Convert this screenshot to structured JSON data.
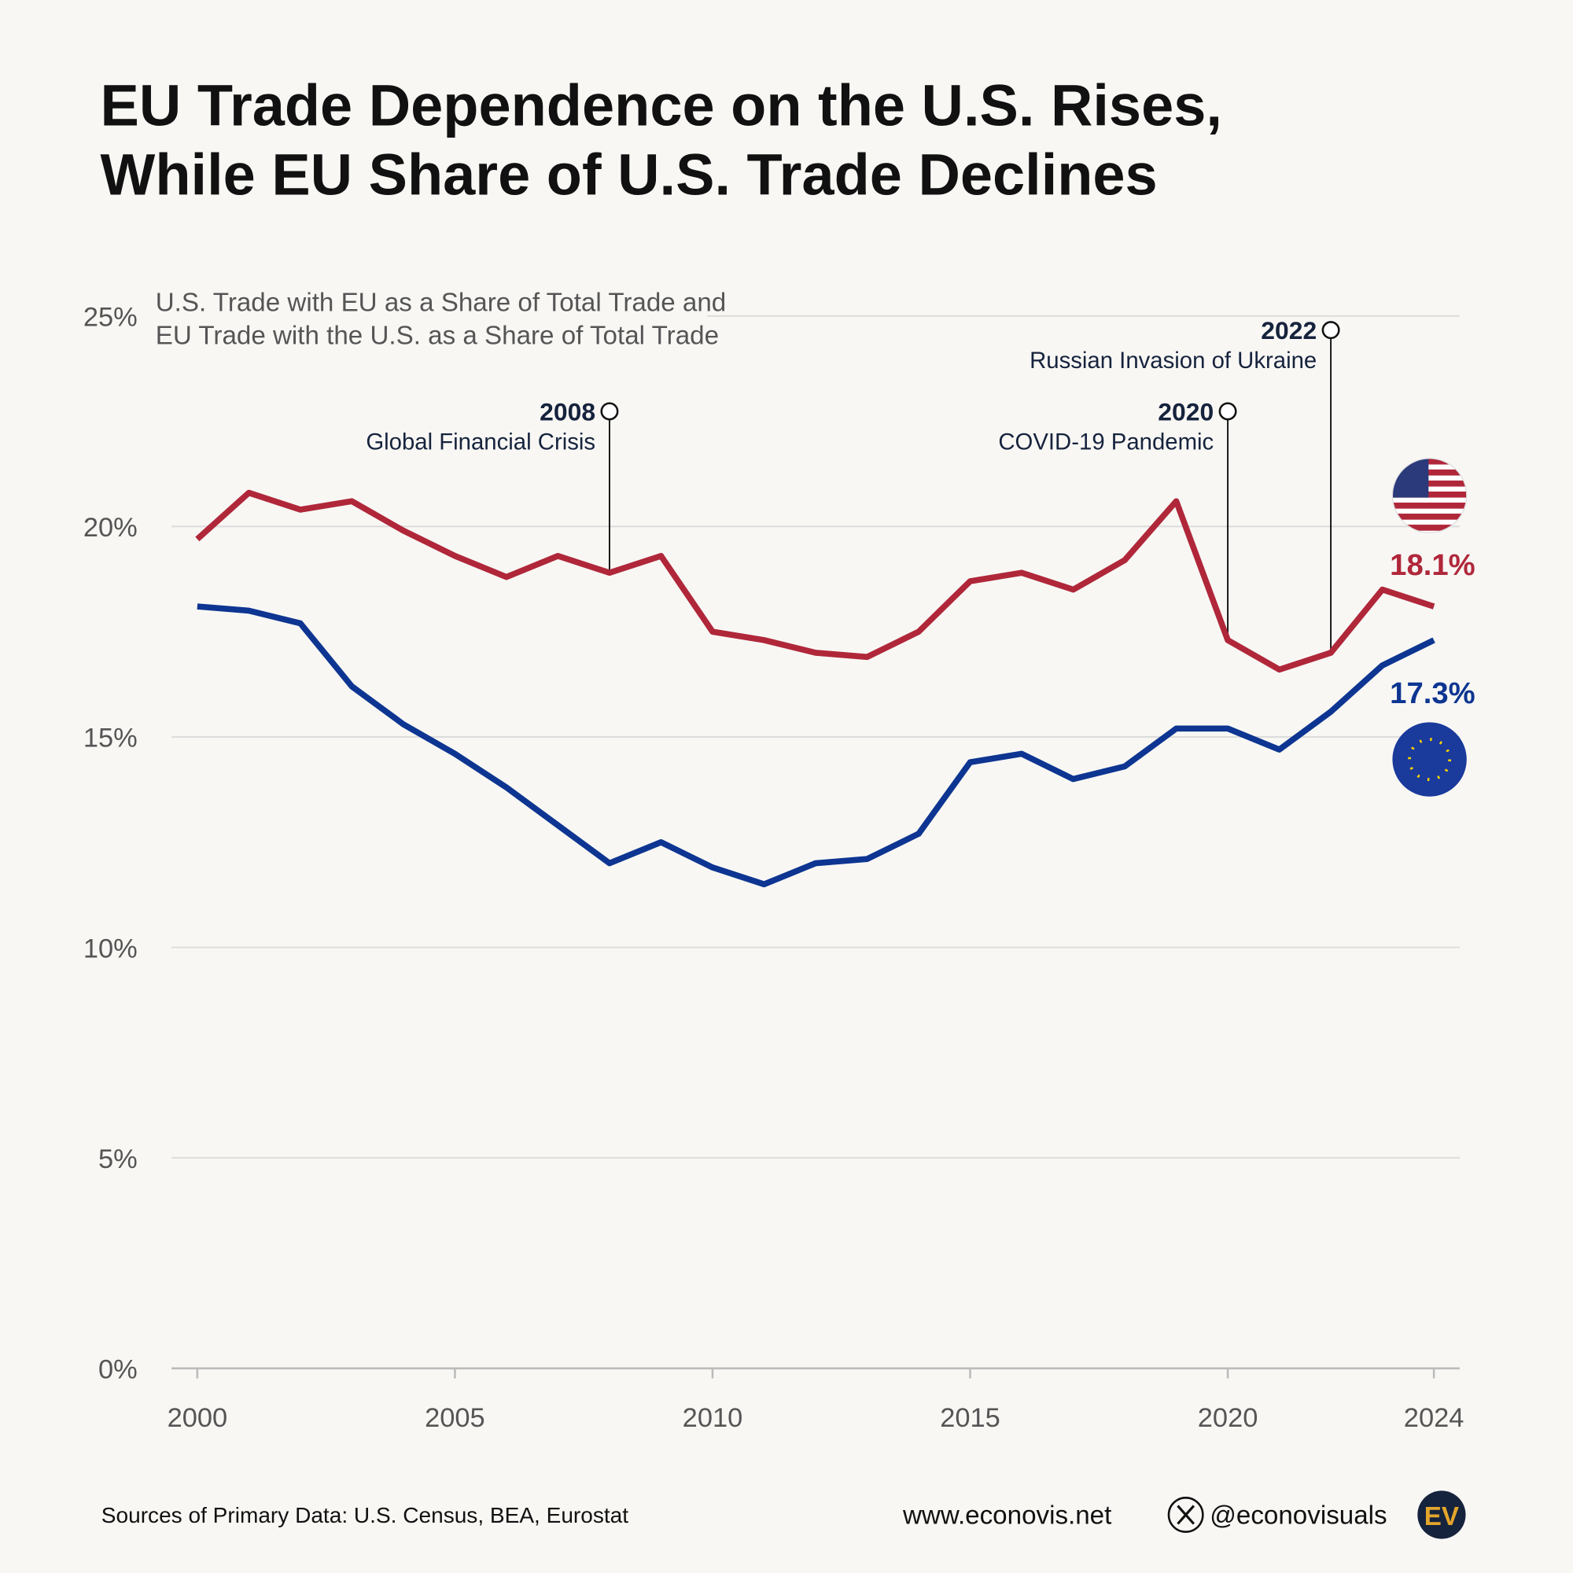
{
  "chart_data": {
    "type": "line",
    "title": [
      "EU Trade Dependence on the U.S. Rises,",
      "While EU Share of U.S. Trade Declines"
    ],
    "subtitle": [
      "U.S. Trade with EU as a Share of Total Trade and",
      "EU Trade with the U.S. as a Share of Total Trade"
    ],
    "x": [
      2000,
      2001,
      2002,
      2003,
      2004,
      2005,
      2006,
      2007,
      2008,
      2009,
      2010,
      2011,
      2012,
      2013,
      2014,
      2015,
      2016,
      2017,
      2018,
      2019,
      2020,
      2021,
      2022,
      2023,
      2024
    ],
    "series": [
      {
        "color": "#b0273a",
        "values": [
          19.7,
          20.8,
          20.4,
          20.6,
          19.9,
          19.3,
          18.8,
          19.3,
          18.9,
          19.3,
          17.5,
          17.3,
          17.0,
          16.9,
          17.5,
          18.7,
          18.9,
          18.5,
          19.2,
          20.6,
          17.3,
          16.6,
          17.0,
          18.5,
          18.1
        ],
        "end_label": "18.1%"
      },
      {
        "color": "#0d3591",
        "values": [
          18.1,
          18.0,
          17.7,
          16.2,
          15.3,
          14.6,
          13.8,
          12.9,
          12.0,
          12.5,
          11.9,
          11.5,
          12.0,
          12.1,
          12.7,
          14.4,
          14.6,
          14.0,
          14.3,
          15.2,
          15.2,
          14.7,
          15.6,
          16.7,
          17.3
        ],
        "end_label": "17.3%"
      }
    ],
    "xlim": [
      1999.5,
      2024.5
    ],
    "xticks": [
      2000,
      2005,
      2010,
      2015,
      2020,
      2024
    ],
    "ylim": [
      0,
      25
    ],
    "yticks": [
      {
        "value": 0,
        "label": "0%"
      },
      {
        "value": 5,
        "label": "5%"
      },
      {
        "value": 10,
        "label": "10%"
      },
      {
        "value": 15,
        "label": "15%"
      },
      {
        "value": 20,
        "label": "20%"
      },
      {
        "value": 25,
        "label": "25%"
      }
    ],
    "grid": true,
    "annotations": [
      {
        "x": 2008,
        "text": "Global Financial Crisis"
      },
      {
        "x": 2020,
        "text": "COVID-19 Pandemic"
      },
      {
        "x": 2022,
        "text": "Russian Invasion of Ukraine"
      }
    ],
    "source": "Sources of Primary Data: U.S. Census, BEA, Eurostat",
    "website": "www.econovis.net",
    "handle": "@econovisuals",
    "logo": "EV"
  }
}
